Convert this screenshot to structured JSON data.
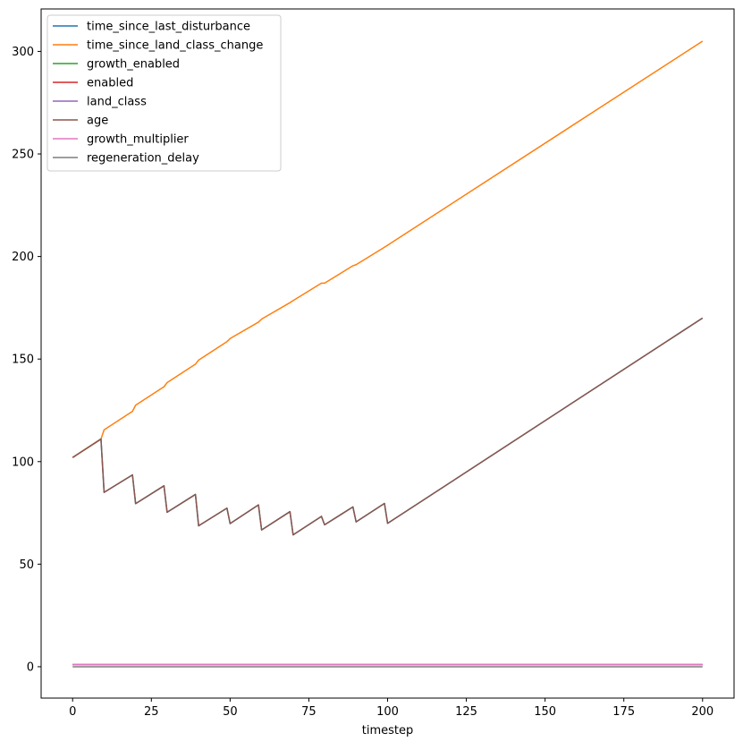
{
  "chart_data": {
    "type": "line",
    "xlabel": "timestep",
    "ylabel": "",
    "title": "",
    "xlim": [
      -10,
      210
    ],
    "ylim": [
      -15.3,
      320.7
    ],
    "xticks": [
      0,
      25,
      50,
      75,
      100,
      125,
      150,
      175,
      200
    ],
    "yticks": [
      0,
      50,
      100,
      150,
      200,
      250,
      300
    ],
    "grid": false,
    "legend_position": "upper-left",
    "series": [
      {
        "name": "time_since_last_disturbance",
        "color": "#1f77b4",
        "x": [
          0,
          9,
          10,
          19,
          20,
          29,
          30,
          39,
          40,
          49,
          50,
          59,
          60,
          69,
          70,
          79,
          80,
          89,
          90,
          99,
          100,
          200
        ],
        "y": [
          102,
          111,
          85,
          93.5,
          79.5,
          88.2,
          75.3,
          84,
          68.7,
          77.3,
          69.8,
          78.9,
          66.7,
          75.6,
          64.3,
          73.3,
          69.2,
          77.9,
          70.6,
          79.6,
          69.9,
          170
        ]
      },
      {
        "name": "time_since_land_class_change",
        "color": "#ff7f0e",
        "x": [
          0,
          9,
          10,
          19,
          20,
          29,
          30,
          39,
          40,
          49,
          50,
          59,
          60,
          69,
          70,
          79,
          80,
          89,
          90,
          99,
          100,
          200
        ],
        "y": [
          102,
          111,
          115.5,
          124.5,
          127.5,
          136.5,
          138.5,
          147.5,
          149.5,
          158.5,
          160,
          168,
          169.5,
          177.5,
          178.5,
          187,
          187,
          195.5,
          196,
          204.5,
          205.5,
          305
        ]
      },
      {
        "name": "growth_enabled",
        "color": "#2ca02c",
        "x": [
          0,
          200
        ],
        "y": [
          1,
          1
        ]
      },
      {
        "name": "enabled",
        "color": "#d62728",
        "x": [
          0,
          200
        ],
        "y": [
          1,
          1
        ]
      },
      {
        "name": "land_class",
        "color": "#9467bd",
        "x": [
          0,
          200
        ],
        "y": [
          1,
          1
        ]
      },
      {
        "name": "age",
        "color": "#8c564b",
        "x": [
          0,
          9,
          10,
          19,
          20,
          29,
          30,
          39,
          40,
          49,
          50,
          59,
          60,
          69,
          70,
          79,
          80,
          89,
          90,
          99,
          100,
          200
        ],
        "y": [
          102,
          111,
          85,
          93.5,
          79.5,
          88.2,
          75.3,
          84,
          68.7,
          77.3,
          69.8,
          78.9,
          66.7,
          75.6,
          64.3,
          73.3,
          69.2,
          77.9,
          70.6,
          79.6,
          69.9,
          170
        ]
      },
      {
        "name": "growth_multiplier",
        "color": "#e377c2",
        "x": [
          0,
          200
        ],
        "y": [
          1,
          1
        ]
      },
      {
        "name": "regeneration_delay",
        "color": "#7f7f7f",
        "x": [
          0,
          200
        ],
        "y": [
          0,
          0
        ]
      }
    ]
  }
}
